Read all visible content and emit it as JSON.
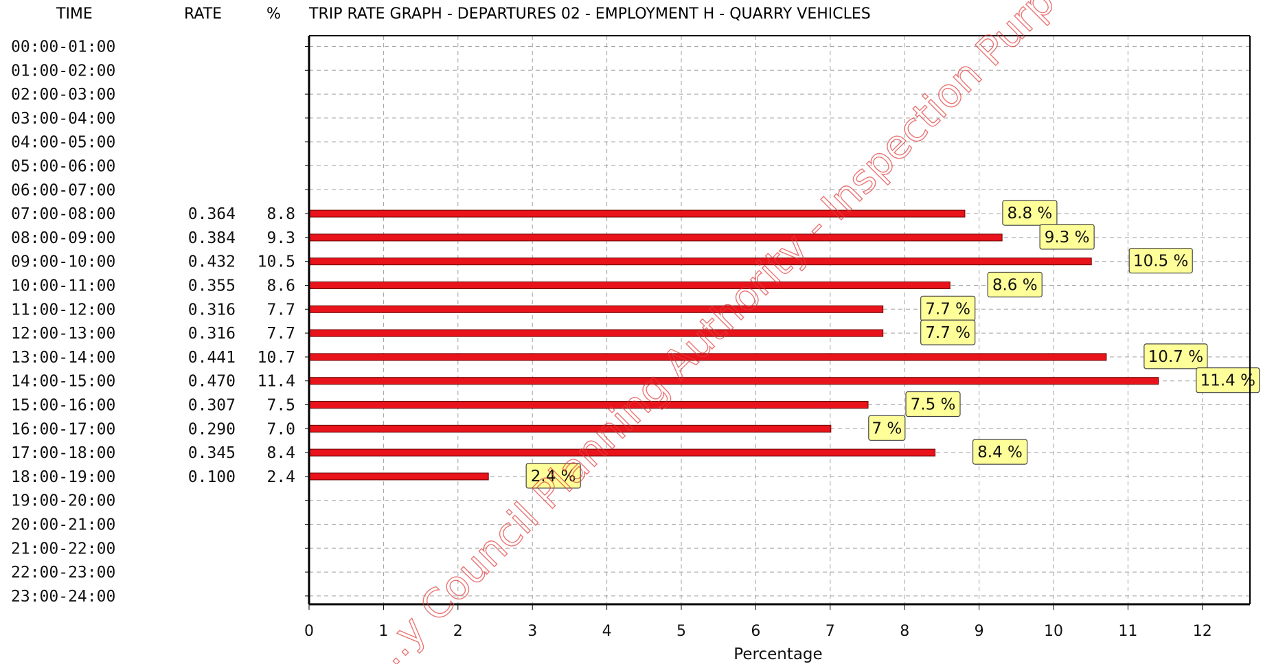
{
  "header": {
    "time_label": "TIME",
    "rate_label": "RATE",
    "pct_label": "%",
    "title": "TRIP RATE GRAPH - DEPARTURES   02 - EMPLOYMENT  H - QUARRY      VEHICLES"
  },
  "watermark": "...y Council Planning Authority - Inspection Purposes",
  "colors": {
    "bar": "#e8131b",
    "label_bg": "#ffff99",
    "grid": "#a0a0a0"
  },
  "chart_data": {
    "type": "bar",
    "orientation": "horizontal",
    "title": "TRIP RATE GRAPH - DEPARTURES   02 - EMPLOYMENT  H - QUARRY      VEHICLES",
    "xlabel": "Percentage",
    "ylabel": "",
    "xlim": [
      0,
      12.7
    ],
    "xticks": [
      0,
      1,
      2,
      3,
      4,
      5,
      6,
      7,
      8,
      9,
      10,
      11,
      12
    ],
    "grid": true,
    "categories": [
      "00:00-01:00",
      "01:00-02:00",
      "02:00-03:00",
      "03:00-04:00",
      "04:00-05:00",
      "05:00-06:00",
      "06:00-07:00",
      "07:00-08:00",
      "08:00-09:00",
      "09:00-10:00",
      "10:00-11:00",
      "11:00-12:00",
      "12:00-13:00",
      "13:00-14:00",
      "14:00-15:00",
      "15:00-16:00",
      "16:00-17:00",
      "17:00-18:00",
      "18:00-19:00",
      "19:00-20:00",
      "20:00-21:00",
      "21:00-22:00",
      "22:00-23:00",
      "23:00-24:00"
    ],
    "rates": [
      "",
      "",
      "",
      "",
      "",
      "",
      "",
      "0.364",
      "0.384",
      "0.432",
      "0.355",
      "0.316",
      "0.316",
      "0.441",
      "0.470",
      "0.307",
      "0.290",
      "0.345",
      "0.100",
      "",
      "",
      "",
      "",
      ""
    ],
    "pct_text": [
      "",
      "",
      "",
      "",
      "",
      "",
      "",
      "8.8",
      "9.3",
      "10.5",
      "8.6",
      "7.7",
      "7.7",
      "10.7",
      "11.4",
      "7.5",
      "7.0",
      "8.4",
      "2.4",
      "",
      "",
      "",
      "",
      ""
    ],
    "values": [
      null,
      null,
      null,
      null,
      null,
      null,
      null,
      8.8,
      9.3,
      10.5,
      8.6,
      7.7,
      7.7,
      10.7,
      11.4,
      7.5,
      7.0,
      8.4,
      2.4,
      null,
      null,
      null,
      null,
      null
    ],
    "data_labels": [
      "",
      "",
      "",
      "",
      "",
      "",
      "",
      "8.8 %",
      "9.3 %",
      "10.5 %",
      "8.6 %",
      "7.7 %",
      "7.7 %",
      "10.7 %",
      "11.4 %",
      "7.5 %",
      "7 %",
      "8.4 %",
      "2.4 %",
      "",
      "",
      "",
      "",
      ""
    ]
  }
}
